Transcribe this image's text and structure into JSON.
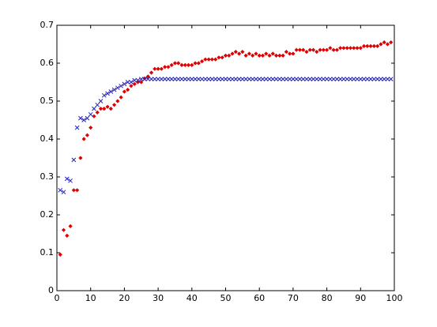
{
  "chart_data": {
    "type": "scatter",
    "x": [
      1,
      2,
      3,
      4,
      5,
      6,
      7,
      8,
      9,
      10,
      11,
      12,
      13,
      14,
      15,
      16,
      17,
      18,
      19,
      20,
      21,
      22,
      23,
      24,
      25,
      26,
      27,
      28,
      29,
      30,
      31,
      32,
      33,
      34,
      35,
      36,
      37,
      38,
      39,
      40,
      41,
      42,
      43,
      44,
      45,
      46,
      47,
      48,
      49,
      50,
      51,
      52,
      53,
      54,
      55,
      56,
      57,
      58,
      59,
      60,
      61,
      62,
      63,
      64,
      65,
      66,
      67,
      68,
      69,
      70,
      71,
      72,
      73,
      74,
      75,
      76,
      77,
      78,
      79,
      80,
      81,
      82,
      83,
      84,
      85,
      86,
      87,
      88,
      89,
      90,
      91,
      92,
      93,
      94,
      95,
      96,
      97,
      98,
      99
    ],
    "series": [
      {
        "color": "#e00000",
        "marker": "diamond",
        "values": [
          0.095,
          0.16,
          0.145,
          0.17,
          0.265,
          0.265,
          0.35,
          0.4,
          0.41,
          0.43,
          0.46,
          0.47,
          0.48,
          0.48,
          0.485,
          0.48,
          0.49,
          0.5,
          0.51,
          0.525,
          0.53,
          0.54,
          0.545,
          0.55,
          0.55,
          0.56,
          0.565,
          0.575,
          0.585,
          0.585,
          0.585,
          0.59,
          0.59,
          0.595,
          0.6,
          0.6,
          0.595,
          0.595,
          0.595,
          0.595,
          0.6,
          0.6,
          0.605,
          0.61,
          0.61,
          0.61,
          0.61,
          0.615,
          0.615,
          0.62,
          0.62,
          0.625,
          0.63,
          0.625,
          0.63,
          0.62,
          0.625,
          0.62,
          0.625,
          0.62,
          0.62,
          0.625,
          0.62,
          0.625,
          0.62,
          0.62,
          0.62,
          0.63,
          0.625,
          0.625,
          0.635,
          0.635,
          0.635,
          0.63,
          0.635,
          0.635,
          0.63,
          0.635,
          0.635,
          0.635,
          0.64,
          0.635,
          0.635,
          0.64,
          0.64,
          0.64,
          0.64,
          0.64,
          0.64,
          0.64,
          0.645,
          0.645,
          0.645,
          0.645,
          0.645,
          0.65,
          0.655,
          0.65,
          0.655
        ]
      },
      {
        "color": "#2020c0",
        "marker": "x",
        "values": [
          0.265,
          0.26,
          0.295,
          0.29,
          0.345,
          0.43,
          0.455,
          0.45,
          0.455,
          0.465,
          0.48,
          0.49,
          0.5,
          0.515,
          0.52,
          0.525,
          0.53,
          0.535,
          0.54,
          0.545,
          0.55,
          0.55,
          0.555,
          0.555,
          0.558,
          0.558,
          0.558,
          0.558,
          0.558,
          0.558,
          0.558,
          0.558,
          0.558,
          0.558,
          0.558,
          0.558,
          0.558,
          0.558,
          0.558,
          0.558,
          0.558,
          0.558,
          0.558,
          0.558,
          0.558,
          0.558,
          0.558,
          0.558,
          0.558,
          0.558,
          0.558,
          0.558,
          0.558,
          0.558,
          0.558,
          0.558,
          0.558,
          0.558,
          0.558,
          0.558,
          0.558,
          0.558,
          0.558,
          0.558,
          0.558,
          0.558,
          0.558,
          0.558,
          0.558,
          0.558,
          0.558,
          0.558,
          0.558,
          0.558,
          0.558,
          0.558,
          0.558,
          0.558,
          0.558,
          0.558,
          0.558,
          0.558,
          0.558,
          0.558,
          0.558,
          0.558,
          0.558,
          0.558,
          0.558,
          0.558,
          0.558,
          0.558,
          0.558,
          0.558,
          0.558,
          0.558,
          0.558,
          0.558,
          0.558
        ]
      }
    ],
    "xlim": [
      0,
      100
    ],
    "xticks": [
      0,
      10,
      20,
      30,
      40,
      50,
      60,
      70,
      80,
      90,
      100
    ],
    "ylim": [
      0,
      0.7
    ],
    "yticks": [
      0,
      0.1,
      0.2,
      0.3,
      0.4,
      0.5,
      0.6,
      0.7
    ],
    "grid": false
  }
}
